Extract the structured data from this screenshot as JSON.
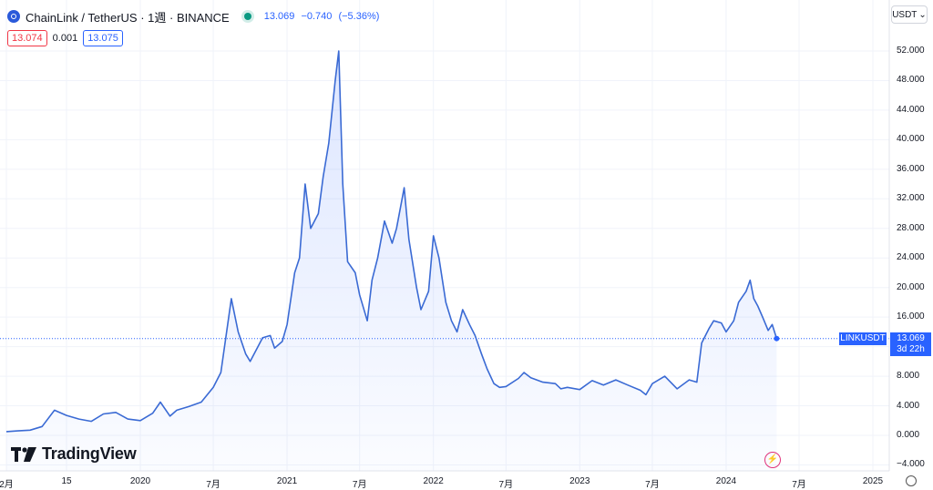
{
  "header": {
    "symbol": "ChainLink / TetherUS · 1週 · BINANCE",
    "last": "13.069",
    "change": "−0.740",
    "change_pct": "(−5.36%)",
    "bid": "13.074",
    "spread": "0.001",
    "ask": "13.075",
    "currency": "USDT"
  },
  "colors": {
    "line": "#3a6ad4",
    "fill": "#2962ff",
    "accent": "#2962ff",
    "grid": "#f0f3fa",
    "down": "#f23645",
    "live": "#089981"
  },
  "last_tag": {
    "symbol": "LINKUSDT",
    "price": "13.069",
    "countdown": "3d 22h"
  },
  "logo_text": "TradingView",
  "chart_data": {
    "type": "area",
    "ylim": [
      -5,
      54
    ],
    "yticks": [
      -4,
      0,
      4,
      8,
      12,
      16,
      20,
      24,
      28,
      32,
      36,
      40,
      44,
      48,
      52
    ],
    "ytick_labels": [
      "−4.000",
      "0.000",
      "4.000",
      "8.000",
      "12.000",
      "16.000",
      "20.000",
      "24.000",
      "28.000",
      "32.000",
      "36.000",
      "40.000",
      "44.000",
      "48.000",
      "52.000"
    ],
    "xticks": [
      {
        "date": "2019-02-01",
        "label": "2月"
      },
      {
        "date": "2019-07-01",
        "label": "15"
      },
      {
        "date": "2020-01-01",
        "label": "2020"
      },
      {
        "date": "2020-07-01",
        "label": "7月"
      },
      {
        "date": "2021-01-01",
        "label": "2021"
      },
      {
        "date": "2021-07-01",
        "label": "7月"
      },
      {
        "date": "2022-01-01",
        "label": "2022"
      },
      {
        "date": "2022-07-01",
        "label": "7月"
      },
      {
        "date": "2023-01-01",
        "label": "2023"
      },
      {
        "date": "2023-07-01",
        "label": "7月"
      },
      {
        "date": "2024-01-01",
        "label": "2024"
      },
      {
        "date": "2024-07-01",
        "label": "7月"
      },
      {
        "date": "2025-01-01",
        "label": "2025"
      }
    ],
    "x_range": [
      "2019-02-01",
      "2025-01-01"
    ],
    "grid": true,
    "series": [
      {
        "x": [
          "2019-02-01",
          "2019-03-01",
          "2019-04-01",
          "2019-05-01",
          "2019-06-01",
          "2019-07-01",
          "2019-08-01",
          "2019-09-01",
          "2019-10-01",
          "2019-11-01",
          "2019-12-01",
          "2020-01-01",
          "2020-02-01",
          "2020-02-20",
          "2020-03-15",
          "2020-04-01",
          "2020-05-01",
          "2020-06-01",
          "2020-07-01",
          "2020-07-20",
          "2020-08-15",
          "2020-09-01",
          "2020-09-20",
          "2020-10-01",
          "2020-11-01",
          "2020-11-20",
          "2020-12-01",
          "2020-12-20",
          "2021-01-01",
          "2021-01-20",
          "2021-02-01",
          "2021-02-15",
          "2021-03-01",
          "2021-03-20",
          "2021-04-01",
          "2021-04-15",
          "2021-05-01",
          "2021-05-10",
          "2021-05-20",
          "2021-06-01",
          "2021-06-20",
          "2021-07-01",
          "2021-07-20",
          "2021-08-01",
          "2021-08-15",
          "2021-09-01",
          "2021-09-20",
          "2021-10-01",
          "2021-10-20",
          "2021-11-01",
          "2021-11-20",
          "2021-12-01",
          "2021-12-20",
          "2022-01-01",
          "2022-01-15",
          "2022-02-01",
          "2022-02-15",
          "2022-03-01",
          "2022-03-15",
          "2022-04-01",
          "2022-04-15",
          "2022-05-01",
          "2022-05-15",
          "2022-06-01",
          "2022-06-15",
          "2022-07-01",
          "2022-08-01",
          "2022-08-15",
          "2022-09-01",
          "2022-10-01",
          "2022-11-01",
          "2022-11-15",
          "2022-12-01",
          "2023-01-01",
          "2023-02-01",
          "2023-03-01",
          "2023-04-01",
          "2023-05-01",
          "2023-06-01",
          "2023-06-15",
          "2023-07-01",
          "2023-08-01",
          "2023-09-01",
          "2023-10-01",
          "2023-10-20",
          "2023-11-01",
          "2023-11-20",
          "2023-12-01",
          "2023-12-20",
          "2024-01-01",
          "2024-01-20",
          "2024-02-01",
          "2024-02-20",
          "2024-03-01",
          "2024-03-10",
          "2024-03-20",
          "2024-04-01",
          "2024-04-15",
          "2024-04-25",
          "2024-05-06"
        ],
        "values": [
          0.5,
          0.6,
          0.7,
          1.2,
          3.4,
          2.7,
          2.2,
          1.9,
          2.9,
          3.1,
          2.2,
          2.0,
          3.0,
          4.5,
          2.6,
          3.4,
          3.9,
          4.5,
          6.5,
          8.5,
          18.5,
          14.0,
          11.0,
          10.0,
          13.2,
          13.5,
          11.8,
          12.7,
          15.0,
          22.0,
          24.0,
          34.0,
          28.0,
          30.0,
          35.0,
          39.5,
          48.0,
          52.0,
          34.0,
          23.5,
          22.0,
          19.0,
          15.5,
          21.0,
          24.0,
          29.0,
          26.0,
          28.0,
          33.5,
          26.5,
          20.0,
          17.0,
          19.5,
          27.0,
          24.0,
          18.0,
          15.5,
          14.0,
          17.0,
          15.0,
          13.5,
          11.0,
          9.0,
          7.0,
          6.5,
          6.6,
          7.7,
          8.5,
          7.8,
          7.2,
          7.0,
          6.3,
          6.5,
          6.2,
          7.4,
          6.8,
          7.5,
          6.8,
          6.1,
          5.5,
          7.0,
          8.0,
          6.3,
          7.5,
          7.2,
          12.5,
          14.5,
          15.5,
          15.2,
          14.0,
          15.5,
          18.0,
          19.5,
          21.0,
          18.5,
          17.5,
          16.0,
          14.2,
          15.0,
          13.1
        ]
      }
    ]
  }
}
